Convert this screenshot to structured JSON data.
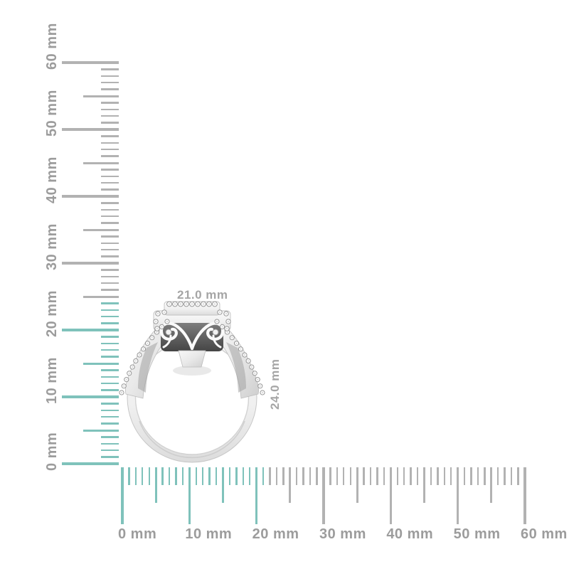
{
  "product": {
    "alt": "halo diamond ring side profile",
    "width_label": "21.0 mm",
    "height_label": "24.0 mm"
  },
  "rulers": {
    "unit": "mm",
    "vertical": {
      "min": 0,
      "max": 60,
      "major_step": 10,
      "labels": [
        "0 mm",
        "10 mm",
        "20 mm",
        "30 mm",
        "40 mm",
        "50 mm",
        "60 mm"
      ],
      "highlight_extent_mm": 24
    },
    "horizontal": {
      "min": 0,
      "max": 60,
      "major_step": 10,
      "labels": [
        "0 mm",
        "10 mm",
        "20 mm",
        "30 mm",
        "40 mm",
        "50 mm",
        "60 mm"
      ],
      "highlight_extent_mm": 21
    },
    "colors": {
      "tick": "#b2b2b2",
      "highlight": "#7fc2bb",
      "label": "#9c9c9c",
      "dimension_label": "#a5a5a5"
    }
  }
}
